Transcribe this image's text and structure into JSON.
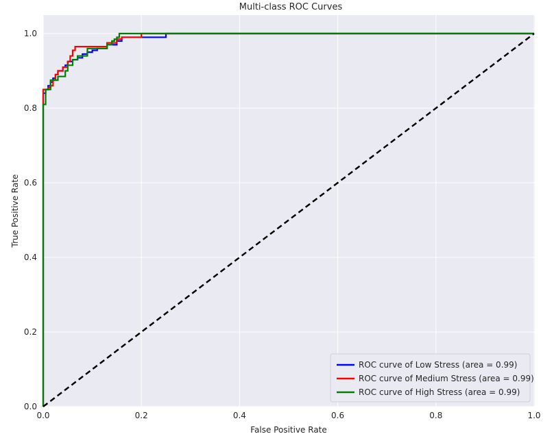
{
  "chart_data": {
    "type": "line",
    "title": "Multi-class ROC Curves",
    "xlabel": "False Positive Rate",
    "ylabel": "True Positive Rate",
    "xlim": [
      0.0,
      1.0
    ],
    "ylim": [
      0.0,
      1.0
    ],
    "xticks": [
      "0.0",
      "0.2",
      "0.4",
      "0.6",
      "0.8",
      "1.0"
    ],
    "yticks": [
      "0.0",
      "0.2",
      "0.4",
      "0.6",
      "0.8",
      "1.0"
    ],
    "grid": true,
    "legend_position": "lower-right",
    "background_color": "#eaeaf2",
    "series": [
      {
        "name": "ROC curve of Low Stress (area = 0.99)",
        "color": "#0000ff",
        "x": [
          0.0,
          0.0,
          0.0,
          0.0,
          0.005,
          0.005,
          0.01,
          0.01,
          0.015,
          0.015,
          0.02,
          0.02,
          0.025,
          0.025,
          0.03,
          0.03,
          0.04,
          0.04,
          0.045,
          0.045,
          0.05,
          0.05,
          0.06,
          0.06,
          0.07,
          0.07,
          0.08,
          0.08,
          0.09,
          0.09,
          0.1,
          0.1,
          0.11,
          0.11,
          0.13,
          0.13,
          0.15,
          0.15,
          0.16,
          0.16,
          0.25,
          0.25,
          1.0
        ],
        "y": [
          0.0,
          0.64,
          0.8,
          0.84,
          0.84,
          0.85,
          0.85,
          0.86,
          0.86,
          0.87,
          0.87,
          0.88,
          0.88,
          0.89,
          0.89,
          0.9,
          0.9,
          0.91,
          0.91,
          0.915,
          0.915,
          0.925,
          0.925,
          0.93,
          0.93,
          0.935,
          0.935,
          0.945,
          0.945,
          0.95,
          0.95,
          0.955,
          0.955,
          0.96,
          0.96,
          0.97,
          0.97,
          0.98,
          0.98,
          0.99,
          0.99,
          1.0,
          1.0
        ]
      },
      {
        "name": "ROC curve of Medium Stress (area = 0.99)",
        "color": "#ff0000",
        "x": [
          0.0,
          0.0,
          0.0,
          0.0,
          0.01,
          0.01,
          0.015,
          0.015,
          0.02,
          0.02,
          0.025,
          0.025,
          0.03,
          0.03,
          0.04,
          0.04,
          0.05,
          0.05,
          0.055,
          0.055,
          0.06,
          0.06,
          0.065,
          0.065,
          0.1,
          0.1,
          0.13,
          0.13,
          0.15,
          0.15,
          0.16,
          0.16,
          0.2,
          0.2,
          1.0
        ],
        "y": [
          0.0,
          0.65,
          0.82,
          0.85,
          0.85,
          0.855,
          0.855,
          0.86,
          0.86,
          0.875,
          0.875,
          0.89,
          0.89,
          0.9,
          0.9,
          0.91,
          0.91,
          0.925,
          0.925,
          0.94,
          0.94,
          0.955,
          0.955,
          0.965,
          0.965,
          0.965,
          0.965,
          0.975,
          0.975,
          0.985,
          0.985,
          0.99,
          0.99,
          1.0,
          1.0
        ]
      },
      {
        "name": "ROC curve of High Stress (area = 0.99)",
        "color": "#008000",
        "x": [
          0.0,
          0.0,
          0.0,
          0.005,
          0.005,
          0.015,
          0.015,
          0.03,
          0.03,
          0.045,
          0.045,
          0.05,
          0.05,
          0.06,
          0.06,
          0.07,
          0.07,
          0.09,
          0.09,
          0.13,
          0.13,
          0.14,
          0.14,
          0.145,
          0.145,
          0.15,
          0.15,
          0.155,
          0.155,
          1.0
        ],
        "y": [
          0.0,
          0.645,
          0.81,
          0.81,
          0.85,
          0.85,
          0.875,
          0.875,
          0.885,
          0.885,
          0.9,
          0.9,
          0.915,
          0.915,
          0.93,
          0.93,
          0.94,
          0.94,
          0.96,
          0.96,
          0.97,
          0.97,
          0.98,
          0.98,
          0.985,
          0.985,
          0.99,
          0.99,
          1.0,
          1.0
        ]
      }
    ],
    "reference_line": {
      "color": "#000000",
      "style": "dashed",
      "x": [
        0.0,
        1.0
      ],
      "y": [
        0.0,
        1.0
      ]
    }
  }
}
